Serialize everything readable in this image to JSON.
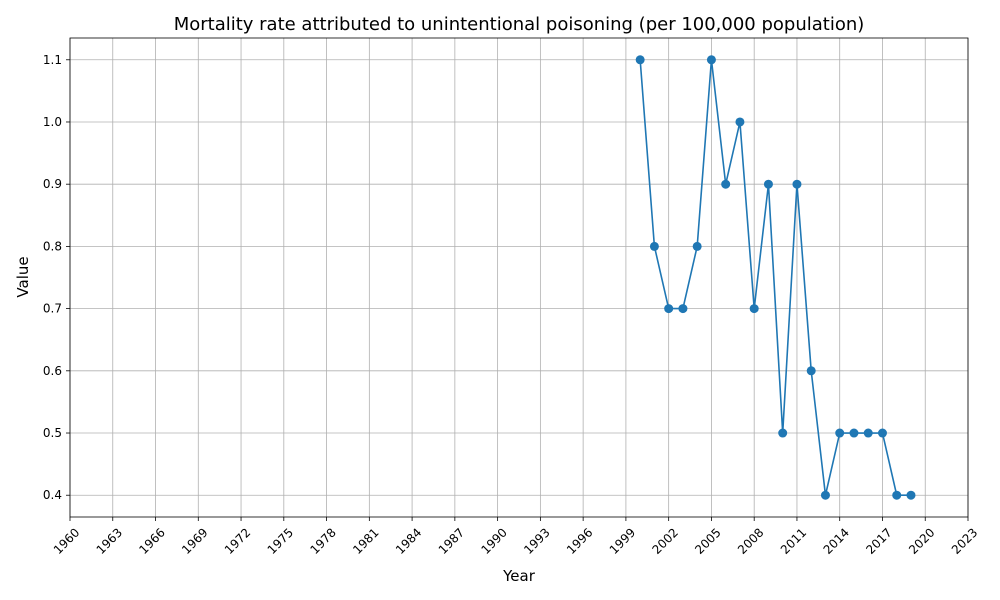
{
  "chart_data": {
    "type": "line",
    "title": "Mortality rate attributed to unintentional poisoning (per 100,000 population)",
    "xlabel": "Year",
    "ylabel": "Value",
    "x": [
      2000,
      2001,
      2002,
      2003,
      2004,
      2005,
      2006,
      2007,
      2008,
      2009,
      2010,
      2011,
      2012,
      2013,
      2014,
      2015,
      2016,
      2017,
      2018,
      2019
    ],
    "series": [
      {
        "values": [
          1.1,
          0.8,
          0.7,
          0.7,
          0.8,
          1.1,
          0.9,
          1.0,
          0.7,
          0.9,
          0.5,
          0.9,
          0.6,
          0.4,
          0.5,
          0.5,
          0.5,
          0.5,
          0.4,
          0.4
        ],
        "color": "#1f77b4",
        "marker": "circle"
      }
    ],
    "xlim": [
      1960,
      2023
    ],
    "ylim": [
      0.365,
      1.135
    ],
    "xticks": [
      1960,
      1963,
      1966,
      1969,
      1972,
      1975,
      1978,
      1981,
      1984,
      1987,
      1990,
      1993,
      1996,
      1999,
      2002,
      2005,
      2008,
      2011,
      2014,
      2017,
      2020,
      2023
    ],
    "yticks": [
      0.4,
      0.5,
      0.6,
      0.7,
      0.8,
      0.9,
      1.0,
      1.1
    ],
    "ytick_labels": [
      "0.4",
      "0.5",
      "0.6",
      "0.7",
      "0.8",
      "0.9",
      "1.0",
      "1.1"
    ],
    "grid": true,
    "x_tick_rotation_deg": 45
  }
}
